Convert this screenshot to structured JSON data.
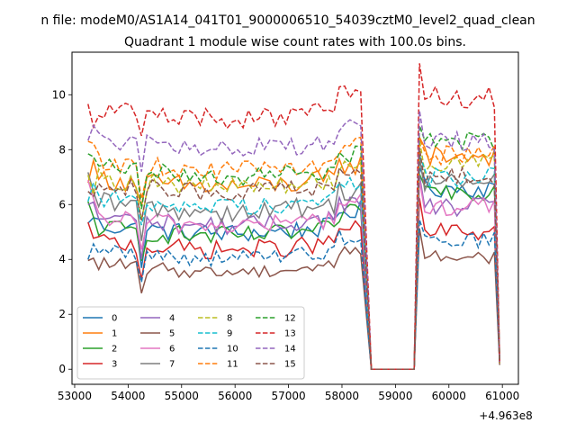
{
  "chart_data": {
    "type": "line",
    "suptitle": "n file: modeM0/AS1A14_041T01_9000006510_54039cztM0_level2_quad_clean",
    "title": "Quadrant 1 module wise count rates with 100.0s bins.",
    "xlabel": "",
    "ylabel": "",
    "x_offset_label": "+4.963e8",
    "xlim": [
      52950,
      61300
    ],
    "ylim": [
      -0.55,
      11.55
    ],
    "x_ticks": [
      53000,
      54000,
      55000,
      56000,
      57000,
      58000,
      59000,
      60000,
      61000
    ],
    "x_tick_labels": [
      "53000",
      "54000",
      "55000",
      "56000",
      "57000",
      "58000",
      "59000",
      "60000",
      "61000"
    ],
    "y_ticks": [
      0,
      2,
      4,
      6,
      8,
      10
    ],
    "y_tick_labels": [
      "0",
      "2",
      "4",
      "6",
      "8",
      "10"
    ],
    "grid": false,
    "legend_position": "lower-left",
    "legend_columns": 4,
    "segments": [
      {
        "start": 53250,
        "end": 58350,
        "step": 100
      },
      {
        "gap": [
          58550,
          59350
        ]
      },
      {
        "start": 59450,
        "end": 60850,
        "step": 100
      }
    ],
    "end_value_x": 60950,
    "series": [
      {
        "name": "0",
        "color": "#1f77b4",
        "dash": "solid",
        "base_a": 5.3,
        "base_b": 6.6,
        "noise": 0.35
      },
      {
        "name": "1",
        "color": "#ff7f0e",
        "dash": "solid",
        "base_a": 7.0,
        "base_b": 7.8,
        "noise": 0.4
      },
      {
        "name": "2",
        "color": "#2ca02c",
        "dash": "solid",
        "base_a": 5.2,
        "base_b": 6.5,
        "noise": 0.35
      },
      {
        "name": "3",
        "color": "#d62728",
        "dash": "solid",
        "base_a": 4.7,
        "base_b": 5.0,
        "noise": 0.35
      },
      {
        "name": "4",
        "color": "#9467bd",
        "dash": "solid",
        "base_a": 5.6,
        "base_b": 5.9,
        "noise": 0.35
      },
      {
        "name": "5",
        "color": "#8c564b",
        "dash": "solid",
        "base_a": 3.9,
        "base_b": 4.1,
        "noise": 0.25
      },
      {
        "name": "6",
        "color": "#e377c2",
        "dash": "solid",
        "base_a": 5.6,
        "base_b": 5.9,
        "noise": 0.35
      },
      {
        "name": "7",
        "color": "#7f7f7f",
        "dash": "solid",
        "base_a": 6.1,
        "base_b": 6.8,
        "noise": 0.4
      },
      {
        "name": "8",
        "color": "#bcbd22",
        "dash": "dashed",
        "base_a": 7.0,
        "base_b": 7.5,
        "noise": 0.35
      },
      {
        "name": "9",
        "color": "#17becf",
        "dash": "dashed",
        "base_a": 6.3,
        "base_b": 7.0,
        "noise": 0.35
      },
      {
        "name": "10",
        "color": "#1f77b4",
        "dash": "dashed",
        "base_a": 4.4,
        "base_b": 4.7,
        "noise": 0.3
      },
      {
        "name": "11",
        "color": "#ff7f0e",
        "dash": "dashed",
        "base_a": 7.6,
        "base_b": 7.8,
        "noise": 0.35
      },
      {
        "name": "12",
        "color": "#2ca02c",
        "dash": "dashed",
        "base_a": 7.4,
        "base_b": 8.3,
        "noise": 0.35
      },
      {
        "name": "13",
        "color": "#d62728",
        "dash": "dashed",
        "base_a": 9.5,
        "base_b": 9.9,
        "noise": 0.4
      },
      {
        "name": "14",
        "color": "#9467bd",
        "dash": "dashed",
        "base_a": 8.4,
        "base_b": 8.3,
        "noise": 0.35
      },
      {
        "name": "15",
        "color": "#8c564b",
        "dash": "dashed",
        "base_a": 6.8,
        "base_b": 7.0,
        "noise": 0.35
      }
    ]
  }
}
